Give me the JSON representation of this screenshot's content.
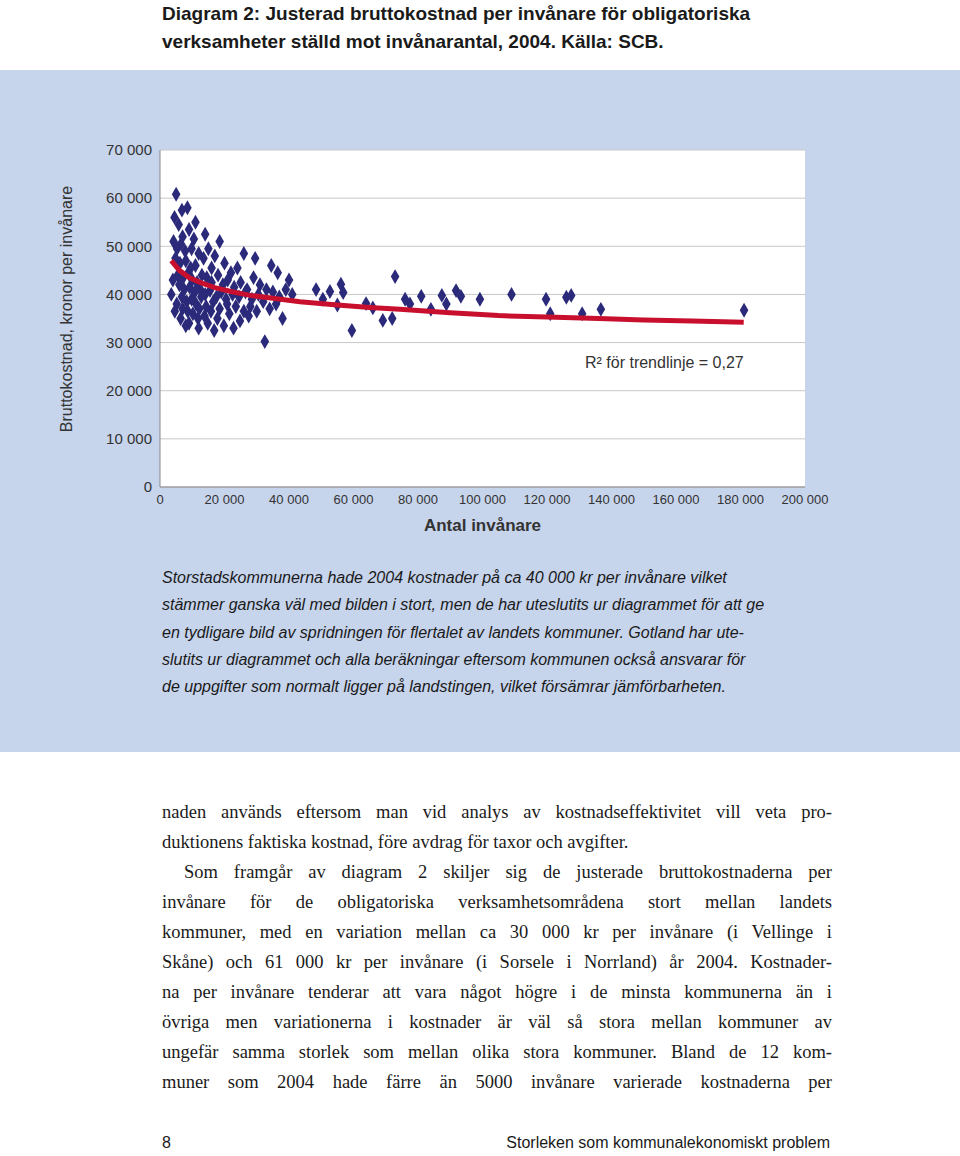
{
  "title_lines": [
    "Diagram 2: Justerad bruttokostnad per invånare för obligatoriska",
    "verksamheter ställd mot invånarantal, 2004. Källa: SCB."
  ],
  "chart_data": {
    "type": "scatter",
    "x_label": "Antal invånare",
    "y_label": "Bruttokostnad, kronor per invånare",
    "annotation": "R² för trendlinje = 0,27",
    "xlim": [
      0,
      200000
    ],
    "xticks": [
      {
        "value": 0,
        "label": "0"
      },
      {
        "value": 20000,
        "label": "20 000"
      },
      {
        "value": 40000,
        "label": "40 000"
      },
      {
        "value": 60000,
        "label": "60 000"
      },
      {
        "value": 80000,
        "label": "80 000"
      },
      {
        "value": 100000,
        "label": "100 000"
      },
      {
        "value": 120000,
        "label": "120 000"
      },
      {
        "value": 140000,
        "label": "140 000"
      },
      {
        "value": 160000,
        "label": "160 000"
      },
      {
        "value": 180000,
        "label": "180 000"
      },
      {
        "value": 200000,
        "label": "200 000"
      }
    ],
    "ylim": [
      0,
      70000
    ],
    "yticks": [
      {
        "value": 0,
        "label": "0"
      },
      {
        "value": 10000,
        "label": "10 000"
      },
      {
        "value": 20000,
        "label": "20 000"
      },
      {
        "value": 30000,
        "label": "30 000"
      },
      {
        "value": 40000,
        "label": "40 000"
      },
      {
        "value": 50000,
        "label": "50 000"
      },
      {
        "value": 60000,
        "label": "60 000"
      },
      {
        "value": 70000,
        "label": "70 000"
      }
    ],
    "grid": true,
    "series": [
      {
        "type": "scatter",
        "marker": "diamond",
        "color": "#2b2a7a",
        "x": [
          5000,
          4500,
          5800,
          7000,
          4200,
          6500,
          8500,
          9000,
          5300,
          7800,
          10500,
          12000,
          4800,
          6200,
          8000,
          9500,
          11000,
          13500,
          15000,
          17000,
          20000,
          22000,
          24000,
          5500,
          7200,
          8800,
          10000,
          11500,
          13000,
          14500,
          16000,
          18000,
          19500,
          21000,
          23000,
          25000,
          27000,
          29000,
          31000,
          6000,
          7500,
          9200,
          10800,
          12500,
          14000,
          15500,
          17500,
          19000,
          20500,
          22500,
          24500,
          26500,
          28500,
          30500,
          33000,
          35000,
          37000,
          39000,
          41000,
          6800,
          8300,
          9800,
          11200,
          12800,
          14300,
          16500,
          18500,
          20800,
          23500,
          26000,
          28000,
          32000,
          34000,
          36000,
          5200,
          7000,
          8600,
          10200,
          12200,
          13800,
          15800,
          17800,
          21500,
          24800,
          27500,
          30000,
          4600,
          6400,
          9000,
          11800,
          14800,
          19800,
          22800,
          8000,
          12000,
          16800,
          32500,
          38000,
          40000,
          36500,
          34500,
          29500,
          26000,
          18500,
          14000,
          11000,
          6800,
          9800,
          16000,
          4000,
          3500,
          48400,
          50500,
          52700,
          55000,
          56100,
          56800,
          59500,
          63900,
          66000,
          69100,
          72900,
          72000,
          76000,
          77500,
          81000,
          84000,
          87400,
          88800,
          91800,
          93300,
          99200,
          109000,
          119700,
          121000,
          126000,
          127500,
          130900,
          136700,
          181100
        ],
        "values": [
          60800,
          56000,
          54500,
          52000,
          51000,
          50500,
          58000,
          53500,
          49500,
          49000,
          51500,
          48500,
          47500,
          46500,
          47000,
          45500,
          46000,
          47500,
          49500,
          48000,
          46500,
          44500,
          45500,
          44000,
          43500,
          44500,
          43000,
          42500,
          44000,
          43500,
          42500,
          44000,
          42000,
          43000,
          41500,
          42500,
          41000,
          43500,
          42000,
          42000,
          41000,
          41500,
          40500,
          41000,
          40000,
          40800,
          39500,
          40500,
          39000,
          40000,
          39500,
          40500,
          39000,
          40000,
          41000,
          40500,
          39500,
          41000,
          40000,
          39500,
          38500,
          39000,
          38000,
          39500,
          37500,
          38500,
          37000,
          38000,
          37500,
          36500,
          37500,
          38500,
          37000,
          38000,
          38000,
          37000,
          36500,
          36000,
          37000,
          35500,
          36500,
          35000,
          36000,
          34500,
          35500,
          36500,
          36500,
          35000,
          34000,
          35000,
          34000,
          33500,
          33000,
          33500,
          33000,
          32500,
          30200,
          35000,
          43000,
          44500,
          46000,
          47500,
          48500,
          51000,
          52500,
          55000,
          57500,
          49500,
          45500,
          43000,
          40000,
          41000,
          39000,
          40600,
          37800,
          42100,
          40400,
          32500,
          38100,
          37200,
          34600,
          43700,
          35000,
          39000,
          38000,
          39600,
          36900,
          39800,
          38000,
          40800,
          39600,
          39000,
          40000,
          39000,
          36000,
          39400,
          39800,
          36000,
          36900,
          36700
        ]
      },
      {
        "type": "line",
        "color": "#c8102e",
        "x": [
          3500,
          6000,
          9000,
          12400,
          17000,
          22000,
          28000,
          35000,
          43400,
          55000,
          65000,
          74400,
          90000,
          105000,
          120000,
          136000,
          150000,
          165000,
          181000
        ],
        "values": [
          47000,
          45000,
          43500,
          42500,
          41400,
          40600,
          39800,
          39200,
          38500,
          37800,
          37300,
          36900,
          36200,
          35600,
          35300,
          35000,
          34700,
          34500,
          34200
        ]
      }
    ]
  },
  "caption_lines": [
    "Storstadskommunerna hade 2004 kostnader på ca 40 000 kr per invånare vilket",
    "stämmer ganska väl med bilden i stort, men de har uteslutits ur diagrammet för att ge",
    "en tydligare bild av spridningen för flertalet av landets kommuner. Gotland har ute-",
    "slutits ur diagrammet och alla beräkningar eftersom kommunen också ansvarar för",
    "de uppgifter som normalt ligger på landstingen, vilket försämrar jämförbarheten."
  ],
  "body_paragraphs": [
    [
      "naden används eftersom man vid analys av kostnadseffektivitet vill veta pro-",
      "duktionens faktiska kostnad, före avdrag för taxor och avgifter."
    ],
    [
      "Som framgår av diagram 2 skiljer sig de justerade bruttokostnaderna per",
      "invånare för de obligatoriska verksamhetsområdena stort mellan landets",
      "kommuner, med en variation mellan ca 30 000 kr per invånare (i Vellinge i",
      "Skåne) och 61 000 kr per invånare (i Sorsele i Norrland) år 2004. Kostnader-",
      "na per invånare tenderar att vara något högre i de minsta kommunerna än i",
      "övriga men variationerna i kostnader är väl så stora mellan kommuner av",
      "ungefär samma storlek som mellan olika stora kommuner. Bland de 12 kom-",
      "muner som 2004 hade färre än 5000 invånare varierade kostnaderna per"
    ]
  ],
  "footer": {
    "page": "8",
    "text": "Storleken som kommunalekonomiskt problem"
  }
}
